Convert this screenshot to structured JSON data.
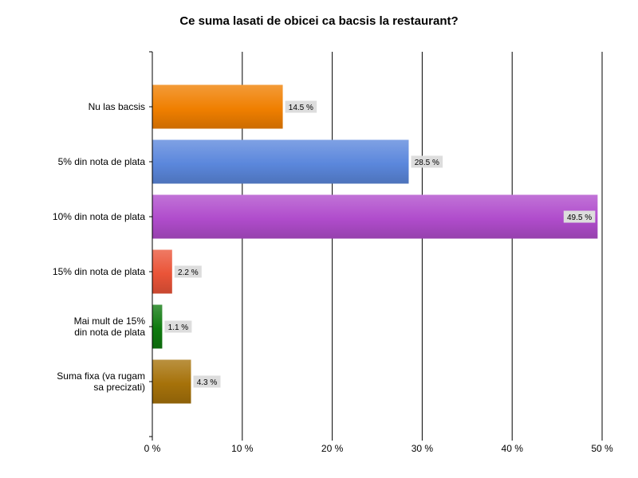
{
  "chart_data": {
    "type": "bar",
    "orientation": "horizontal",
    "title": "Ce suma lasati de obicei ca bacsis la restaurant?",
    "categories": [
      "Nu las bacsis",
      "5% din nota de plata",
      "10% din nota de plata",
      "15% din nota de plata",
      "Mai mult de 15%\ndin nota de plata",
      "Suma fixa (va rugam\nsa precizati)"
    ],
    "values": [
      14.5,
      28.5,
      49.5,
      2.2,
      1.1,
      4.3
    ],
    "data_labels": [
      "14.5 %",
      "28.5 %",
      "49.5 %",
      "2.2 %",
      "1.1 %",
      "4.3 %"
    ],
    "colors": [
      "#f07f00",
      "#5b87dc",
      "#b04ccc",
      "#ea5438",
      "#0f7a0f",
      "#a6720a"
    ],
    "xlim": [
      0,
      50
    ],
    "xticks": [
      0,
      10,
      20,
      30,
      40,
      50
    ],
    "xtick_labels": [
      "0 %",
      "10 %",
      "20 %",
      "30 %",
      "40 %",
      "50 %"
    ],
    "xlabel": "",
    "ylabel": "",
    "grid": "vertical",
    "legend": "none"
  }
}
